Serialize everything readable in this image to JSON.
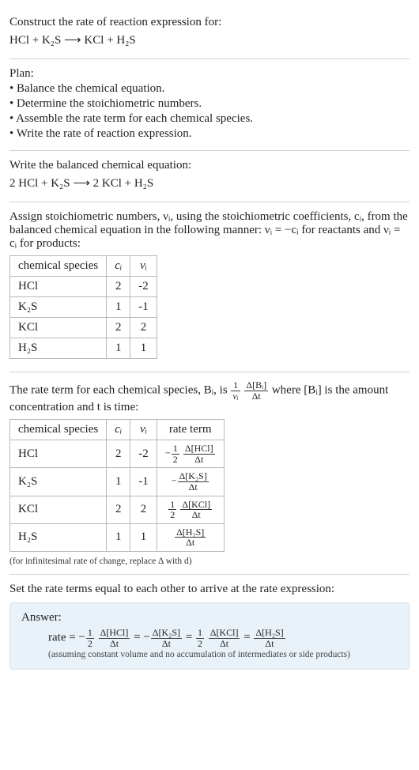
{
  "header": {
    "prompt": "Construct the rate of reaction expression for:",
    "equation": "HCl + K₂S  ⟶  KCl + H₂S"
  },
  "plan": {
    "title": "Plan:",
    "items": [
      "• Balance the chemical equation.",
      "• Determine the stoichiometric numbers.",
      "• Assemble the rate term for each chemical species.",
      "• Write the rate of reaction expression."
    ]
  },
  "balanced": {
    "title": "Write the balanced chemical equation:",
    "equation": "2 HCl + K₂S  ⟶  2 KCl + H₂S"
  },
  "stoich": {
    "intro_a": "Assign stoichiometric numbers, νᵢ, using the stoichiometric coefficients, cᵢ, from the balanced chemical equation in the following manner: νᵢ = −cᵢ for reactants and νᵢ = cᵢ for products:",
    "headers": {
      "species": "chemical species",
      "c": "cᵢ",
      "v": "νᵢ"
    },
    "rows": [
      {
        "species": "HCl",
        "c": "2",
        "v": "-2"
      },
      {
        "species": "K₂S",
        "c": "1",
        "v": "-1"
      },
      {
        "species": "KCl",
        "c": "2",
        "v": "2"
      },
      {
        "species": "H₂S",
        "c": "1",
        "v": "1"
      }
    ]
  },
  "rateterm": {
    "intro_pre": "The rate term for each chemical species, Bᵢ, is ",
    "intro_post": " where [Bᵢ] is the amount concentration and t is time:",
    "frac1": {
      "num": "1",
      "den": "νᵢ"
    },
    "frac2": {
      "num": "Δ[Bᵢ]",
      "den": "Δt"
    },
    "headers": {
      "species": "chemical species",
      "c": "cᵢ",
      "v": "νᵢ",
      "rate": "rate term"
    },
    "rows": [
      {
        "species": "HCl",
        "c": "2",
        "v": "-2",
        "sign": "−",
        "coef_num": "1",
        "coef_den": "2",
        "d_num": "Δ[HCl]",
        "d_den": "Δt",
        "has_coef": true
      },
      {
        "species": "K₂S",
        "c": "1",
        "v": "-1",
        "sign": "−",
        "d_num": "Δ[K₂S]",
        "d_den": "Δt",
        "has_coef": false
      },
      {
        "species": "KCl",
        "c": "2",
        "v": "2",
        "sign": "",
        "coef_num": "1",
        "coef_den": "2",
        "d_num": "Δ[KCl]",
        "d_den": "Δt",
        "has_coef": true
      },
      {
        "species": "H₂S",
        "c": "1",
        "v": "1",
        "sign": "",
        "d_num": "Δ[H₂S]",
        "d_den": "Δt",
        "has_coef": false
      }
    ],
    "note": "(for infinitesimal rate of change, replace Δ with d)"
  },
  "final": {
    "title": "Set the rate terms equal to each other to arrive at the rate expression:"
  },
  "answer": {
    "label": "Answer:",
    "lead": "rate = ",
    "terms": [
      {
        "sign": "−",
        "coef_num": "1",
        "coef_den": "2",
        "d_num": "Δ[HCl]",
        "d_den": "Δt",
        "has_coef": true
      },
      {
        "sign": "−",
        "d_num": "Δ[K₂S]",
        "d_den": "Δt",
        "has_coef": false
      },
      {
        "sign": "",
        "coef_num": "1",
        "coef_den": "2",
        "d_num": "Δ[KCl]",
        "d_den": "Δt",
        "has_coef": true
      },
      {
        "sign": "",
        "d_num": "Δ[H₂S]",
        "d_den": "Δt",
        "has_coef": false
      }
    ],
    "eq": " = ",
    "note": "(assuming constant volume and no accumulation of intermediates or side products)"
  }
}
